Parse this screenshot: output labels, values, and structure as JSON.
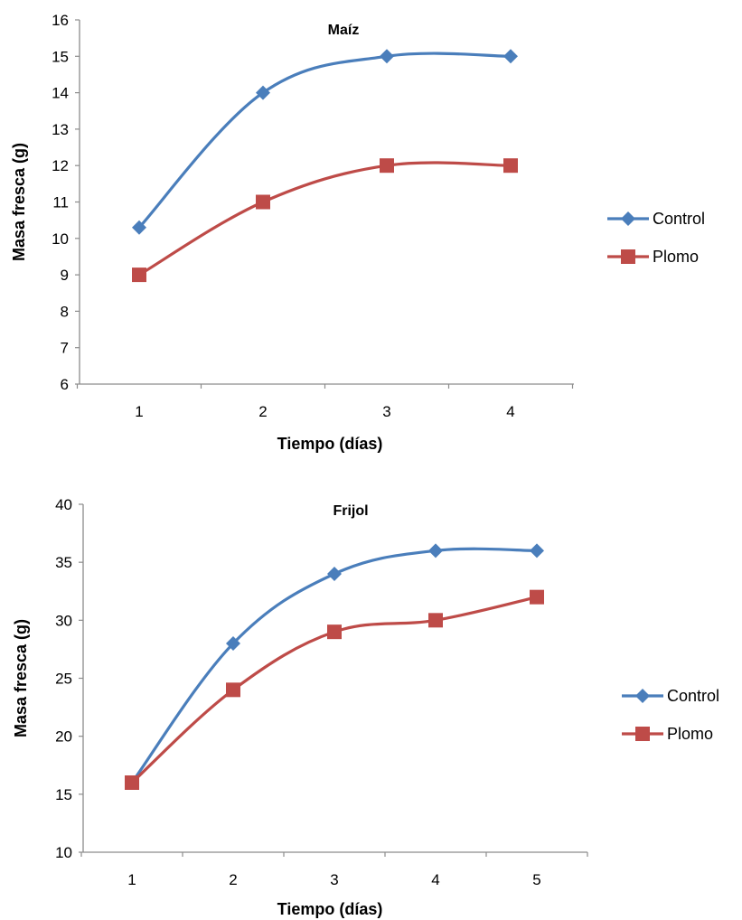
{
  "colors": {
    "control": "#4a7ebb",
    "plomo": "#be4b48",
    "axis": "#8c8c8c"
  },
  "chart_data": [
    {
      "type": "line",
      "title": "Maíz",
      "xlabel": "Tiempo (días)",
      "ylabel": "Masa fresca (g)",
      "x": [
        1,
        2,
        3,
        4
      ],
      "ylim": [
        6,
        16
      ],
      "yticks": [
        6,
        7,
        8,
        9,
        10,
        11,
        12,
        13,
        14,
        15,
        16
      ],
      "grid": false,
      "legend": "right",
      "series": [
        {
          "name": "Control",
          "marker": "diamond",
          "values": [
            10.3,
            14,
            15,
            15
          ]
        },
        {
          "name": "Plomo",
          "marker": "square",
          "values": [
            9,
            11,
            12,
            12
          ]
        }
      ]
    },
    {
      "type": "line",
      "title": "Frijol",
      "xlabel": "Tiempo (días)",
      "ylabel": "Masa fresca (g)",
      "x": [
        1,
        2,
        3,
        4,
        5
      ],
      "ylim": [
        10,
        40
      ],
      "yticks": [
        10,
        15,
        20,
        25,
        30,
        35,
        40
      ],
      "grid": false,
      "legend": "right",
      "series": [
        {
          "name": "Control",
          "marker": "diamond",
          "values": [
            16,
            28,
            34,
            36,
            36
          ]
        },
        {
          "name": "Plomo",
          "marker": "square",
          "values": [
            16,
            24,
            29,
            30,
            32
          ]
        }
      ]
    }
  ]
}
